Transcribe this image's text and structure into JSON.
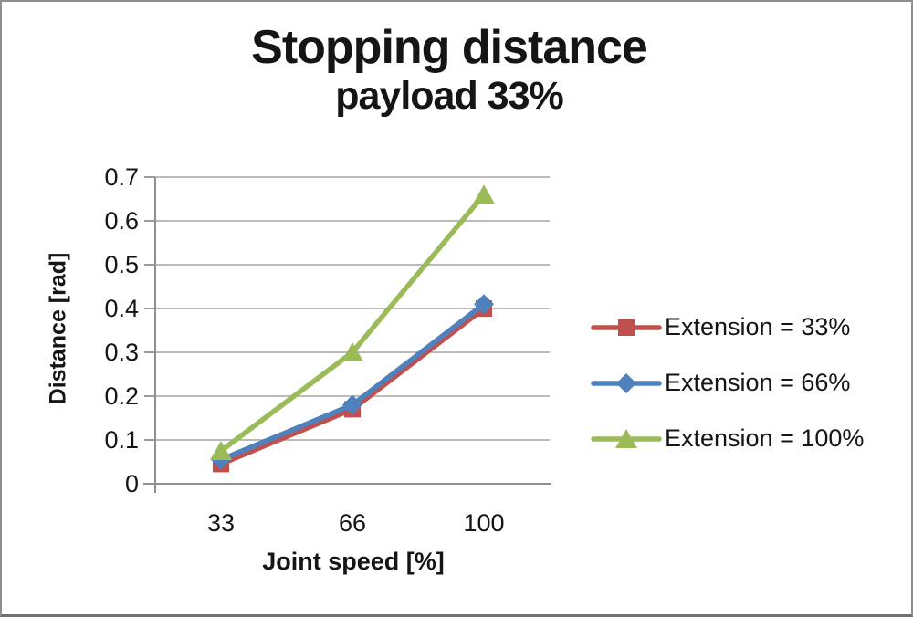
{
  "chart_data": {
    "type": "line",
    "title": "Stopping distance",
    "subtitle": "payload 33%",
    "xlabel": "Joint speed [%]",
    "ylabel": "Distance [rad]",
    "categories": [
      "33",
      "66",
      "100"
    ],
    "series": [
      {
        "name": "Extension = 33%",
        "values": [
          0.045,
          0.17,
          0.4
        ],
        "color": "#C0504D",
        "marker": "square"
      },
      {
        "name": "Extension = 66%",
        "values": [
          0.055,
          0.18,
          0.41
        ],
        "color": "#4F81BD",
        "marker": "diamond"
      },
      {
        "name": "Extension = 100%",
        "values": [
          0.075,
          0.3,
          0.66
        ],
        "color": "#9BBB59",
        "marker": "triangle"
      }
    ],
    "ylim": [
      0,
      0.7
    ],
    "ytick_step": 0.1,
    "grid": true,
    "legend_position": "right",
    "colors": {
      "grid": "#a3a3a3",
      "axis": "#8f8f8f",
      "text": "#151515"
    }
  }
}
